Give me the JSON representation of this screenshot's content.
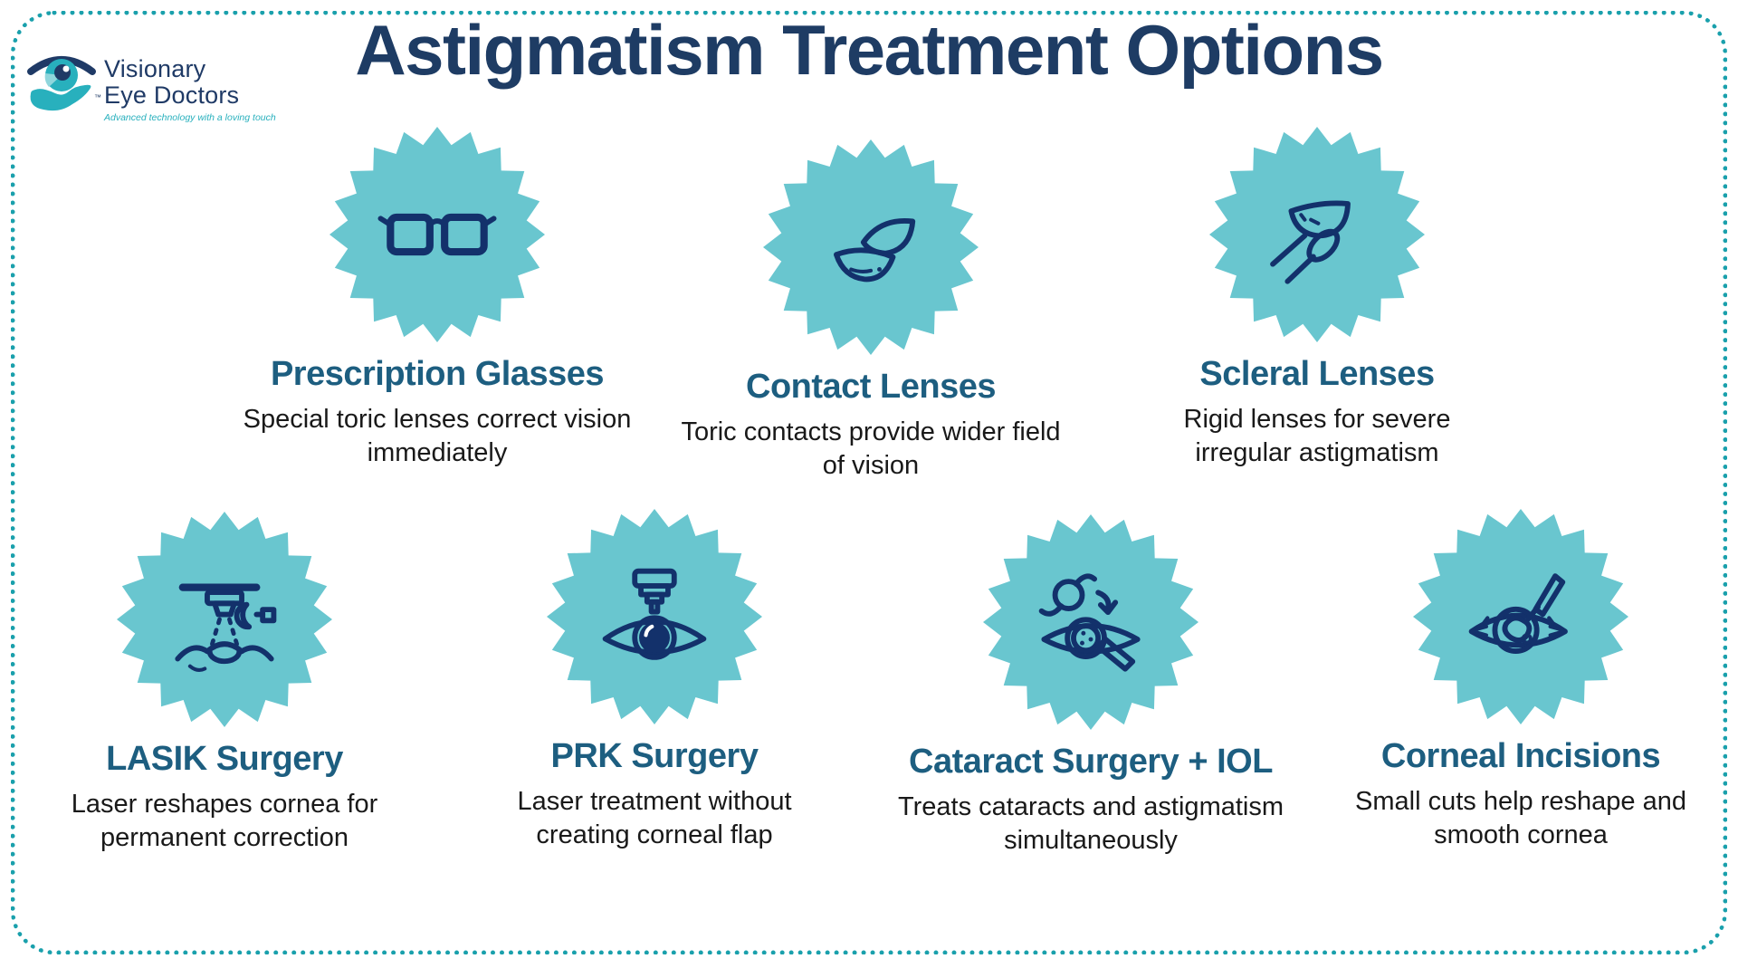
{
  "page": {
    "title": "Astigmatism Treatment Options"
  },
  "logo": {
    "icon": "eye-in-hand-logo-icon",
    "name_line1": "Visionary",
    "name_line2": "Eye Doctors",
    "trademark": "™",
    "tagline": "Advanced technology with a loving touch"
  },
  "theme": {
    "badge_fill": "#69c6cf",
    "icon_stroke": "#13316b",
    "heading_color": "#1d5e80",
    "title_color": "#1e3c64",
    "body_color": "#191919",
    "border_color": "#1aa0ac",
    "logo_navy": "#1f3a66",
    "logo_teal": "#28b0bd"
  },
  "treatments": [
    {
      "title": "Prescription Glasses",
      "description": "Special toric lenses correct vision immediately",
      "icon": "eyeglasses-icon"
    },
    {
      "title": "Contact Lenses",
      "description": "Toric contacts provide wider field of vision",
      "icon": "contact-lenses-icon"
    },
    {
      "title": "Scleral Lenses",
      "description": "Rigid lenses for severe irregular astigmatism",
      "icon": "lens-on-fingertip-icon"
    },
    {
      "title": "LASIK Surgery",
      "description": "Laser reshapes cornea for permanent correction",
      "icon": "laser-machine-over-eye-icon"
    },
    {
      "title": "PRK Surgery",
      "description": "Laser treatment without creating corneal flap",
      "icon": "laser-nozzle-eye-icon"
    },
    {
      "title": "Cataract Surgery + IOL",
      "description": "Treats cataracts and astigmatism simultaneously",
      "icon": "iol-implant-eye-icon"
    },
    {
      "title": "Corneal Incisions",
      "description": "Small cuts help reshape and smooth cornea",
      "icon": "scalpel-on-eye-icon"
    }
  ]
}
